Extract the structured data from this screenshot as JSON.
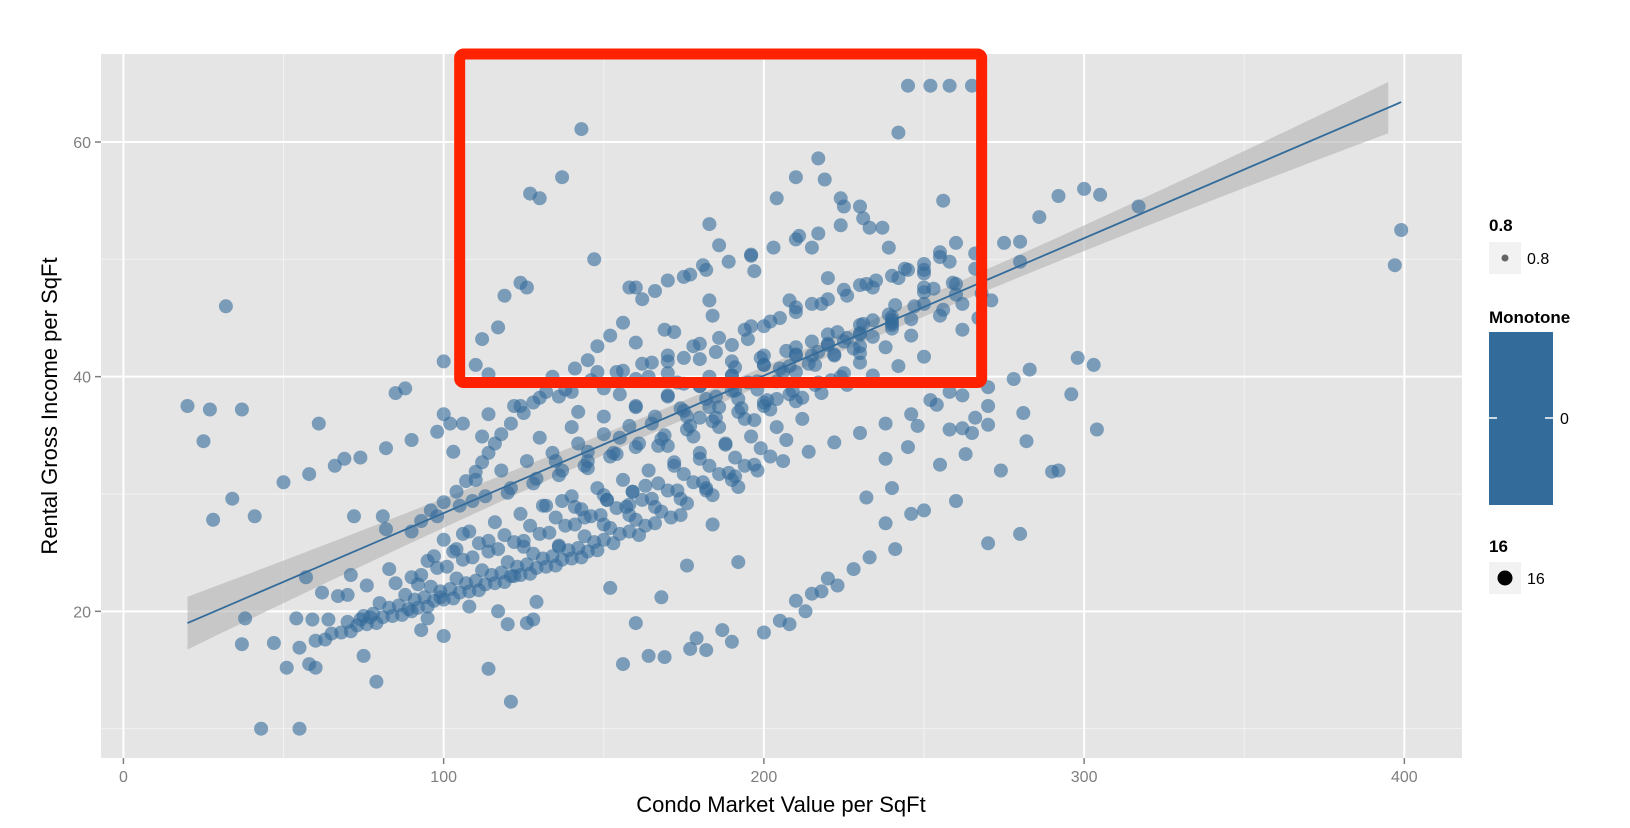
{
  "chart_data": {
    "type": "scatter",
    "title": "",
    "xlabel": "Condo Market Value per SqFt",
    "ylabel": "Rental Gross Income per SqFt",
    "xlim": [
      -7,
      418
    ],
    "ylim": [
      7.5,
      67.5
    ],
    "x_ticks": [
      "0",
      "100",
      "200",
      "300",
      "400"
    ],
    "x_tick_values": [
      0,
      100,
      200,
      300,
      400
    ],
    "y_ticks": [
      "20",
      "40",
      "60"
    ],
    "y_tick_values": [
      20,
      40,
      60
    ],
    "grid": true,
    "point_color": "#336b9a",
    "point_alpha": 0.6,
    "trend_line": {
      "x": [
        20,
        399
      ],
      "y": [
        19,
        63.4
      ],
      "se_band": true,
      "line_color": "#336b9a"
    },
    "highlight_box": {
      "x_range": [
        105,
        268
      ],
      "y_range": [
        39.5,
        67.5
      ],
      "color": "#ff2200"
    },
    "points_x": [
      20,
      25,
      27,
      28,
      32,
      34,
      37,
      37,
      41,
      43,
      47,
      51,
      54,
      55,
      57,
      58,
      59,
      60,
      61,
      62,
      64,
      67,
      69,
      70,
      71,
      72,
      74,
      75,
      76,
      77,
      79,
      81,
      82,
      83,
      90,
      92,
      93,
      95,
      97,
      98,
      99,
      100,
      102,
      104,
      106,
      108,
      38,
      127,
      130,
      147,
      143,
      137,
      160,
      158,
      126,
      124,
      119,
      117,
      114,
      112,
      110,
      100,
      103,
      109,
      114,
      121,
      129,
      136,
      144,
      152,
      160,
      168,
      176,
      184,
      192,
      114,
      117,
      120,
      122,
      125,
      126,
      128,
      131,
      137,
      141,
      145,
      150,
      154,
      158,
      163,
      167,
      172,
      176,
      180,
      183,
      188,
      191,
      197,
      200,
      204,
      208,
      212,
      217,
      221,
      226,
      230,
      234,
      238,
      241,
      246,
      250,
      255,
      259,
      262,
      266,
      271,
      275,
      280,
      286,
      292,
      300,
      305,
      317,
      245,
      252,
      258,
      265,
      242,
      256,
      210,
      217,
      224,
      230,
      237,
      215,
      196,
      186,
      183,
      181,
      177,
      170,
      166,
      162,
      156,
      152,
      148,
      145,
      141,
      134,
      132,
      128,
      125,
      121,
      118,
      116,
      114,
      112,
      110,
      107,
      104,
      100,
      96,
      93,
      90,
      88,
      85,
      140,
      150,
      160,
      170,
      180,
      190,
      200,
      210,
      220,
      230,
      240,
      250,
      260,
      270,
      280,
      150,
      158,
      166,
      174,
      182,
      190,
      198,
      206,
      214,
      222,
      230,
      238,
      246,
      254,
      262,
      270,
      278,
      283,
      290,
      298,
      303,
      165,
      170,
      175,
      180,
      185,
      190,
      195,
      200,
      205,
      210,
      215,
      220,
      225,
      230,
      235,
      240,
      245,
      250,
      255,
      260,
      265,
      270,
      180,
      186,
      192,
      198,
      204,
      210,
      216,
      222,
      228,
      234,
      240,
      246,
      252,
      258,
      175,
      183,
      191,
      199,
      207,
      215,
      223,
      231,
      239,
      247,
      255,
      263,
      170,
      178,
      186,
      194,
      202,
      210,
      218,
      226,
      234,
      242,
      250,
      258,
      266,
      160,
      170,
      180,
      190,
      200,
      210,
      220,
      230,
      240,
      250,
      260,
      175,
      182,
      189,
      196,
      203,
      210,
      217,
      224,
      231,
      238,
      245,
      130,
      140,
      150,
      160,
      170,
      180,
      190,
      200,
      210,
      220,
      230,
      240,
      250,
      260,
      120,
      128,
      136,
      144,
      152,
      160,
      168,
      176,
      184,
      192,
      200,
      208,
      216,
      224,
      232,
      240,
      110,
      118,
      126,
      134,
      142,
      150,
      158,
      166,
      174,
      182,
      190,
      198,
      206,
      214,
      222,
      230,
      238,
      246,
      105,
      113,
      121,
      129,
      137,
      145,
      153,
      161,
      169,
      177,
      185,
      193,
      201,
      209,
      217,
      225,
      233,
      241,
      100,
      108,
      116,
      124,
      132,
      140,
      148,
      156,
      164,
      172,
      180,
      188,
      196,
      204,
      212,
      220,
      228,
      95,
      103,
      111,
      119,
      127,
      135,
      143,
      151,
      159,
      167,
      175,
      183,
      191,
      199,
      207,
      215,
      223,
      90,
      98,
      106,
      114,
      122,
      130,
      138,
      146,
      154,
      162,
      170,
      178,
      186,
      194,
      202,
      210,
      218,
      85,
      93,
      101,
      109,
      117,
      125,
      133,
      141,
      149,
      157,
      165,
      173,
      181,
      189,
      197,
      205,
      213,
      80,
      88,
      96,
      104,
      112,
      120,
      128,
      136,
      144,
      152,
      160,
      168,
      176,
      184,
      192,
      200,
      208,
      75,
      83,
      91,
      99,
      107,
      115,
      123,
      131,
      139,
      147,
      155,
      163,
      171,
      179,
      187,
      70,
      78,
      86,
      94,
      102,
      110,
      118,
      126,
      134,
      142,
      150,
      158,
      166,
      174,
      182,
      190,
      65,
      73,
      81,
      89,
      97,
      105,
      113,
      121,
      129,
      137,
      145,
      153,
      161,
      169,
      177,
      60,
      68,
      76,
      84,
      92,
      100,
      108,
      116,
      124,
      132,
      140,
      148,
      156,
      164,
      55,
      63,
      71,
      79,
      87,
      95,
      103,
      111,
      119,
      127,
      135,
      143,
      151,
      159,
      50,
      58,
      66,
      74,
      82,
      90,
      98,
      106,
      114,
      122,
      130,
      138,
      146,
      154,
      162,
      170,
      178,
      186,
      194,
      202,
      210,
      218,
      226,
      234,
      242,
      250,
      258,
      266,
      274,
      282,
      142,
      156,
      169,
      183,
      197,
      211,
      225,
      239,
      253,
      267,
      281,
      296,
      230,
      240,
      250,
      255,
      262,
      270,
      100,
      112,
      124,
      136,
      148,
      160,
      172,
      184,
      196,
      208,
      220,
      232,
      244,
      256,
      268,
      280,
      292,
      304,
      397,
      399,
      204,
      219,
      233,
      248,
      262,
      155,
      164,
      173,
      182,
      191,
      135,
      145,
      155,
      165,
      175,
      185,
      195,
      205,
      215,
      225,
      235,
      245
    ],
    "points_y": [
      37.5,
      34.5,
      37.2,
      27.8,
      46,
      29.6,
      37.2,
      17.2,
      28.1,
      10,
      17.3,
      15.2,
      19.4,
      10,
      22.9,
      15.5,
      19.3,
      15.2,
      36,
      21.6,
      19.3,
      21.3,
      33,
      21.4,
      23.1,
      28.1,
      19.3,
      16.2,
      22.2,
      19.5,
      14,
      28.1,
      27,
      23.6,
      20,
      22.3,
      18.4,
      19.4,
      24.7,
      28.1,
      21.2,
      17.9,
      36,
      25.3,
      26.6,
      20.4,
      19.4,
      55.6,
      55.2,
      50,
      61.1,
      57,
      47.6,
      47.6,
      47.6,
      48,
      46.9,
      44.2,
      40.2,
      43.2,
      41,
      41.3,
      33.6,
      29.4,
      26,
      12.3,
      20.8,
      25.5,
      28,
      22,
      19,
      21.2,
      23.9,
      27.4,
      24.2,
      15.1,
      20,
      18.9,
      23,
      25.5,
      19,
      19.3,
      29,
      29.4,
      28.9,
      32.2,
      29.9,
      33.4,
      29.1,
      30.7,
      34.1,
      32.4,
      36.6,
      33,
      37.4,
      34.3,
      38.8,
      36.3,
      37.5,
      38.1,
      40.9,
      38.2,
      42.1,
      39.7,
      43.3,
      41.2,
      44.8,
      42.5,
      46.1,
      43.5,
      47.6,
      45.2,
      48,
      46.2,
      49.2,
      46.5,
      51.4,
      49.8,
      53.6,
      55.4,
      56,
      55.5,
      54.5,
      64.8,
      64.8,
      64.8,
      64.8,
      60.8,
      55,
      57,
      58.6,
      55.2,
      54.5,
      52.7,
      51,
      50.3,
      51.2,
      53,
      49.5,
      48.7,
      48.2,
      47.3,
      46.6,
      44.6,
      43.5,
      42.6,
      41.4,
      40.7,
      40,
      38.7,
      37.8,
      36.9,
      36,
      35.1,
      34.3,
      33.5,
      32.7,
      31.9,
      31.1,
      30.2,
      29.3,
      28.6,
      27.7,
      26.8,
      39,
      38.6,
      38.7,
      39,
      39.8,
      40.3,
      41.5,
      41.3,
      41.8,
      42.5,
      43.6,
      44.4,
      45.1,
      46.2,
      47,
      25.8,
      26.6,
      27.4,
      28.2,
      28.9,
      29.6,
      30.5,
      31.2,
      32,
      32.8,
      33.6,
      34.4,
      35.2,
      36,
      36.8,
      37.6,
      38.4,
      39.1,
      39.8,
      40.6,
      31.9,
      41.6,
      41,
      41.2,
      41.3,
      41.6,
      42.8,
      42.1,
      42.7,
      43.2,
      44.3,
      45,
      45.9,
      46.2,
      46.6,
      47.4,
      47.8,
      48.2,
      48.6,
      49.1,
      49.6,
      50.6,
      51.4,
      35.2,
      35.9,
      36.5,
      37.4,
      38.1,
      38.9,
      39.6,
      40.4,
      41,
      41.8,
      42.4,
      43.4,
      44.1,
      44.9,
      38,
      38.7,
      39.4,
      40,
      40.8,
      41.6,
      42.2,
      43,
      43.8,
      44.5,
      45.3,
      46,
      32.5,
      33.4,
      34.1,
      34.9,
      35.7,
      36.4,
      37.2,
      37.9,
      38.6,
      39.3,
      40.1,
      40.9,
      41.7,
      35.5,
      36.5,
      37.4,
      38.4,
      39.2,
      40.1,
      41,
      41.9,
      42.8,
      43.7,
      44.6,
      47.2,
      47.9,
      48.5,
      49.1,
      49.8,
      50.4,
      51,
      51.7,
      52.2,
      52.9,
      53.5,
      33,
      34,
      34.8,
      35.7,
      36.6,
      37.5,
      38.3,
      39.2,
      40.1,
      41,
      41.8,
      42.7,
      43.6,
      44.4,
      28.6,
      29.4,
      30.1,
      30.9,
      31.6,
      32.4,
      33.2,
      34,
      34.7,
      35.5,
      36.2,
      37,
      37.8,
      38.5,
      39.3,
      40,
      29.7,
      30.5,
      31.2,
      32,
      32.8,
      33.5,
      34.3,
      35.1,
      35.8,
      36.6,
      37.3,
      38.1,
      38.8,
      39.6,
      40.4,
      41.1,
      41.9,
      42.6,
      27.5,
      28.3,
      29,
      29.8,
      30.5,
      31.3,
      32,
      32.8,
      33.5,
      34.3,
      35,
      35.8,
      36.5,
      37.3,
      38,
      38.8,
      39.5,
      40.3,
      24.6,
      25.3,
      26.1,
      26.8,
      27.6,
      28.3,
      29,
      29.8,
      30.5,
      31.2,
      32,
      32.7,
      33.5,
      34.2,
      34.9,
      35.7,
      36.4,
      22.8,
      23.6,
      24.3,
      25.1,
      25.8,
      26.5,
      27.3,
      28,
      28.7,
      29.5,
      30.2,
      30.9,
      31.7,
      32.4,
      33.1,
      33.9,
      34.6,
      21.5,
      22.2,
      22.9,
      23.7,
      24.4,
      25.1,
      25.9,
      26.6,
      27.3,
      28.1,
      28.8,
      29.5,
      30.3,
      31,
      31.7,
      32.4,
      33.2,
      20.9,
      21.7,
      22.4,
      23.1,
      23.8,
      24.6,
      25.3,
      26,
      26.7,
      27.4,
      28.2,
      28.9,
      29.6,
      30.3,
      31,
      31.8,
      32.5,
      19.2,
      20,
      20.7,
      21.4,
      22.1,
      22.8,
      23.5,
      24.2,
      24.9,
      25.6,
      26.4,
      27.1,
      27.8,
      28.5,
      29.2,
      29.9,
      30.6,
      18.2,
      18.9,
      19.6,
      20.3,
      21,
      21.7,
      22.4,
      23.1,
      23.8,
      24.5,
      25.2,
      25.9,
      26.6,
      27.3,
      28,
      17.7,
      18.4,
      19.1,
      19.8,
      20.5,
      21.2,
      21.9,
      22.6,
      23.3,
      24,
      24.7,
      25.4,
      26.1,
      26.8,
      27.5,
      28.2,
      16.7,
      17.4,
      18.1,
      18.8,
      19.5,
      20.2,
      20.9,
      21.6,
      22.3,
      23,
      23.7,
      24.4,
      25.1,
      25.8,
      26.5,
      16.1,
      16.8,
      17.5,
      18.2,
      18.9,
      19.6,
      20.3,
      21,
      21.7,
      22.4,
      23.1,
      23.8,
      24.5,
      25.2,
      15.5,
      16.2,
      16.9,
      17.6,
      18.3,
      19,
      19.7,
      20.4,
      21.1,
      21.8,
      22.5,
      23.2,
      23.9,
      24.6,
      29.5,
      30.2,
      31,
      31.7,
      32.4,
      33.1,
      33.9,
      34.6,
      35.3,
      36,
      36.8,
      37.5,
      38.2,
      38.9,
      39.7,
      40.4,
      41.1,
      41.8,
      42.6,
      43.3,
      44,
      44.7,
      45.5,
      46.2,
      46.9,
      47.6,
      48.4,
      49.1,
      49.8,
      50.5,
      32,
      34.5,
      37,
      40.5,
      44,
      46.5,
      49,
      52,
      54.5,
      51,
      47.5,
      45,
      36.9,
      38.5,
      42,
      44.8,
      48.8,
      50.2,
      35.6,
      37.5,
      36.8,
      34.9,
      37.5,
      38.3,
      40.4,
      42.9,
      43.8,
      45.2,
      44.3,
      46.5,
      48.4,
      47.9,
      49.2,
      45.7,
      47.1,
      51.5,
      32,
      35.5,
      49.5,
      52.5,
      55.2,
      56.8,
      52.7,
      35.8,
      44,
      38.5,
      40,
      39.5,
      30.3,
      31.5,
      32.8,
      33.6,
      34.8,
      36,
      37.1,
      38.3,
      39.5,
      40.7,
      41.8,
      43
    ]
  },
  "legend": {
    "alpha": {
      "title": "0.8",
      "label": "0.8"
    },
    "color": {
      "title": "Monotone",
      "label": "0",
      "color": "#336b9a"
    },
    "size": {
      "title": "16",
      "label": "16"
    }
  }
}
